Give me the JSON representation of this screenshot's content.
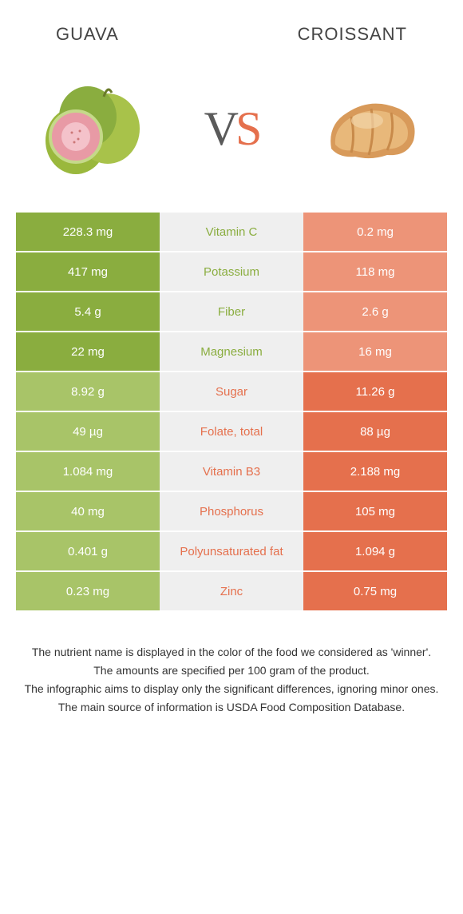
{
  "foods": {
    "left": {
      "name": "GUAVA"
    },
    "right": {
      "name": "CROISSANT"
    }
  },
  "vs_label": {
    "v": "V",
    "s": "S"
  },
  "colors": {
    "left_winner": "#8aad3f",
    "left_loser": "#a8c468",
    "right_winner": "#e5704d",
    "right_loser": "#ed9478",
    "mid_bg": "#efefef"
  },
  "rows": [
    {
      "left": "228.3 mg",
      "nutrient": "Vitamin C",
      "right": "0.2 mg",
      "winner": "left"
    },
    {
      "left": "417 mg",
      "nutrient": "Potassium",
      "right": "118 mg",
      "winner": "left"
    },
    {
      "left": "5.4 g",
      "nutrient": "Fiber",
      "right": "2.6 g",
      "winner": "left"
    },
    {
      "left": "22 mg",
      "nutrient": "Magnesium",
      "right": "16 mg",
      "winner": "left"
    },
    {
      "left": "8.92 g",
      "nutrient": "Sugar",
      "right": "11.26 g",
      "winner": "right"
    },
    {
      "left": "49 µg",
      "nutrient": "Folate, total",
      "right": "88 µg",
      "winner": "right"
    },
    {
      "left": "1.084 mg",
      "nutrient": "Vitamin B3",
      "right": "2.188 mg",
      "winner": "right"
    },
    {
      "left": "40 mg",
      "nutrient": "Phosphorus",
      "right": "105 mg",
      "winner": "right"
    },
    {
      "left": "0.401 g",
      "nutrient": "Polyunsaturated fat",
      "right": "1.094 g",
      "winner": "right"
    },
    {
      "left": "0.23 mg",
      "nutrient": "Zinc",
      "right": "0.75 mg",
      "winner": "right"
    }
  ],
  "footer": [
    "The nutrient name is displayed in the color of the food we considered as 'winner'.",
    "The amounts are specified per 100 gram of the product.",
    "The infographic aims to display only the significant differences, ignoring minor ones.",
    "The main source of information is USDA Food Composition Database."
  ]
}
